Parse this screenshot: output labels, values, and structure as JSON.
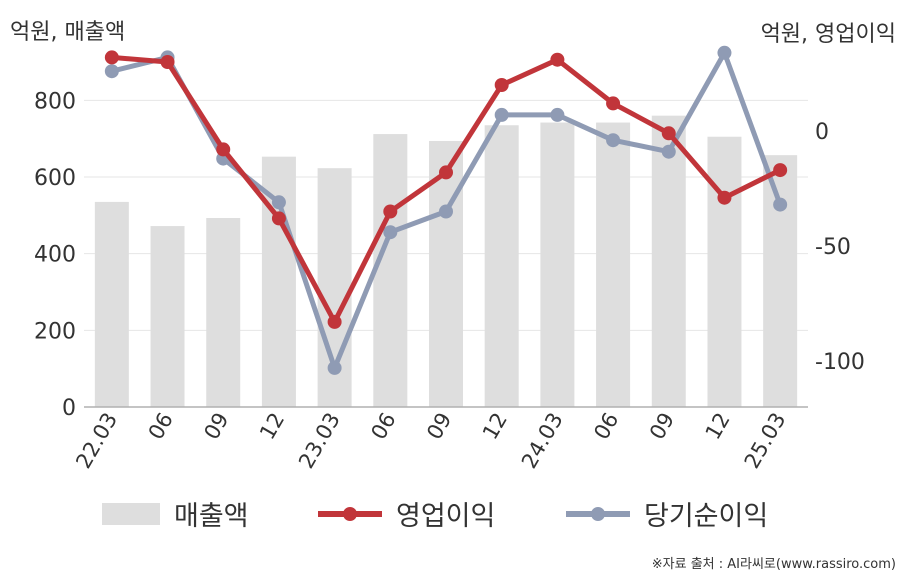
{
  "units": {
    "left": "억원, 매출액",
    "right": "억원, 영업이익"
  },
  "source": "※자료 출처 : AI라씨로(www.rassiro.com)",
  "colors": {
    "bar": "#dedede",
    "op": "#c1353a",
    "net": "#8f9bb4",
    "grid": "#e6e6e6",
    "axis": "#b0b0b0"
  },
  "chart_data": {
    "type": "bar+line",
    "categories": [
      "22.03",
      "06",
      "09",
      "12",
      "23.03",
      "06",
      "09",
      "12",
      "24.03",
      "06",
      "09",
      "12",
      "25.03"
    ],
    "left_axis": {
      "ylim": [
        0,
        900
      ],
      "ticks": [
        0,
        200,
        400,
        600,
        800
      ]
    },
    "right_axis": {
      "ylim": [
        -120,
        30
      ],
      "ticks": [
        -100,
        -50,
        0
      ]
    },
    "series": [
      {
        "name": "매출액",
        "type": "bar",
        "axis": "left",
        "values": [
          535,
          472,
          493,
          653,
          623,
          712,
          694,
          735,
          742,
          742,
          760,
          705,
          657
        ]
      },
      {
        "name": "영업이익",
        "type": "line",
        "axis": "right",
        "values": [
          32,
          30,
          -8,
          -38,
          -83,
          -35,
          -18,
          20,
          31,
          12,
          -1,
          -29,
          -17
        ]
      },
      {
        "name": "당기순이익",
        "type": "line",
        "axis": "right",
        "values": [
          26,
          32,
          -12,
          -31,
          -103,
          -44,
          -35,
          7,
          7,
          -4,
          -9,
          34,
          -32
        ]
      }
    ]
  }
}
